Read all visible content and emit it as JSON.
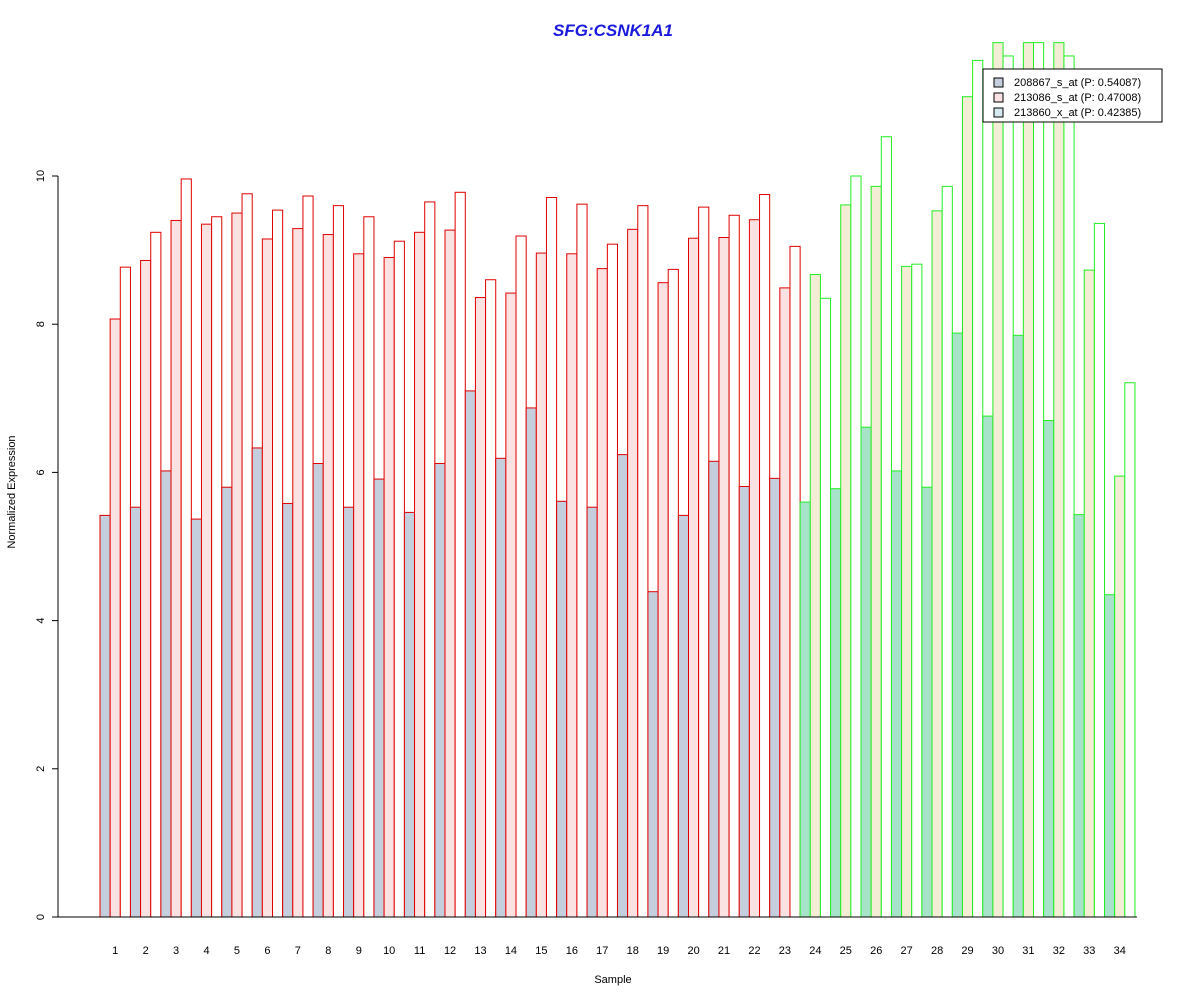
{
  "chart_data": {
    "type": "bar",
    "title": "SFG:CSNK1A1",
    "xlabel": "Sample",
    "ylabel": "Normalized Expression",
    "ylim": [
      0,
      11.6
    ],
    "yticks": [
      0,
      2,
      4,
      6,
      8,
      10
    ],
    "categories": [
      "1",
      "2",
      "3",
      "4",
      "5",
      "6",
      "7",
      "8",
      "9",
      "10",
      "11",
      "12",
      "13",
      "14",
      "15",
      "16",
      "17",
      "18",
      "19",
      "20",
      "21",
      "22",
      "23",
      "24",
      "25",
      "26",
      "27",
      "28",
      "29",
      "30",
      "31",
      "32",
      "33",
      "34"
    ],
    "group_split_index": 23,
    "series": [
      {
        "name": "208867_s_at (P: 0.54087)",
        "values": [
          5.42,
          5.53,
          6.02,
          5.37,
          5.8,
          6.33,
          5.58,
          6.12,
          5.53,
          5.91,
          5.46,
          6.12,
          7.1,
          6.19,
          6.87,
          5.61,
          5.53,
          6.24,
          4.39,
          5.42,
          6.15,
          5.81,
          5.92,
          5.6,
          5.78,
          6.61,
          6.02,
          5.8,
          7.88,
          6.76,
          7.85,
          6.7,
          5.43,
          4.35
        ]
      },
      {
        "name": "213086_s_at (P: 0.47008)",
        "values": [
          8.07,
          8.86,
          9.4,
          9.35,
          9.5,
          9.15,
          9.29,
          9.21,
          8.95,
          8.9,
          9.24,
          9.27,
          8.36,
          8.42,
          8.96,
          8.95,
          8.75,
          9.28,
          8.56,
          9.16,
          9.17,
          9.41,
          8.49,
          8.67,
          9.61,
          9.86,
          8.78,
          9.53,
          11.07,
          11.8,
          11.8,
          11.8,
          8.73,
          5.95
        ]
      },
      {
        "name": "213860_x_at (P: 0.42385)",
        "values": [
          8.77,
          9.24,
          9.96,
          9.45,
          9.76,
          9.54,
          9.73,
          9.6,
          9.45,
          9.12,
          9.65,
          9.78,
          8.6,
          9.19,
          9.71,
          9.62,
          9.08,
          9.6,
          8.74,
          9.58,
          9.47,
          9.75,
          9.05,
          8.35,
          10.0,
          10.53,
          8.81,
          9.86,
          11.56,
          11.62,
          11.8,
          11.62,
          9.36,
          7.21
        ]
      }
    ],
    "colors": {
      "group1": {
        "stroke": "#e00000",
        "fills": [
          "#c4cedd",
          "#fbe2e2",
          "#ffffff"
        ]
      },
      "group2": {
        "stroke": "#22ee22",
        "fills": [
          "#a7e3c8",
          "#f4edd5",
          "#ffffff"
        ]
      },
      "title": "#1a1adc",
      "legend_swatches": [
        "#c4cedd",
        "#fbe2e2",
        "#d6e8f0"
      ]
    },
    "legend_position": "top-right"
  }
}
